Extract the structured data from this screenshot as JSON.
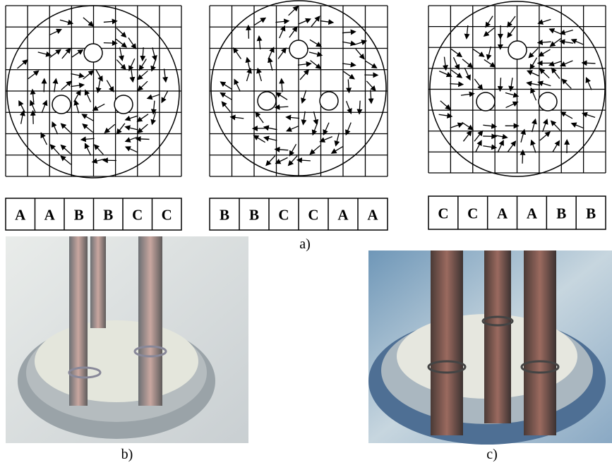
{
  "panels": [
    {
      "phases": [
        "A",
        "A",
        "B",
        "B",
        "C",
        "C"
      ]
    },
    {
      "phases": [
        "B",
        "B",
        "C",
        "C",
        "A",
        "A"
      ]
    },
    {
      "phases": [
        "C",
        "C",
        "A",
        "A",
        "B",
        "B"
      ]
    }
  ],
  "captions": {
    "a": "a)",
    "b": "b)",
    "c": "c)"
  }
}
